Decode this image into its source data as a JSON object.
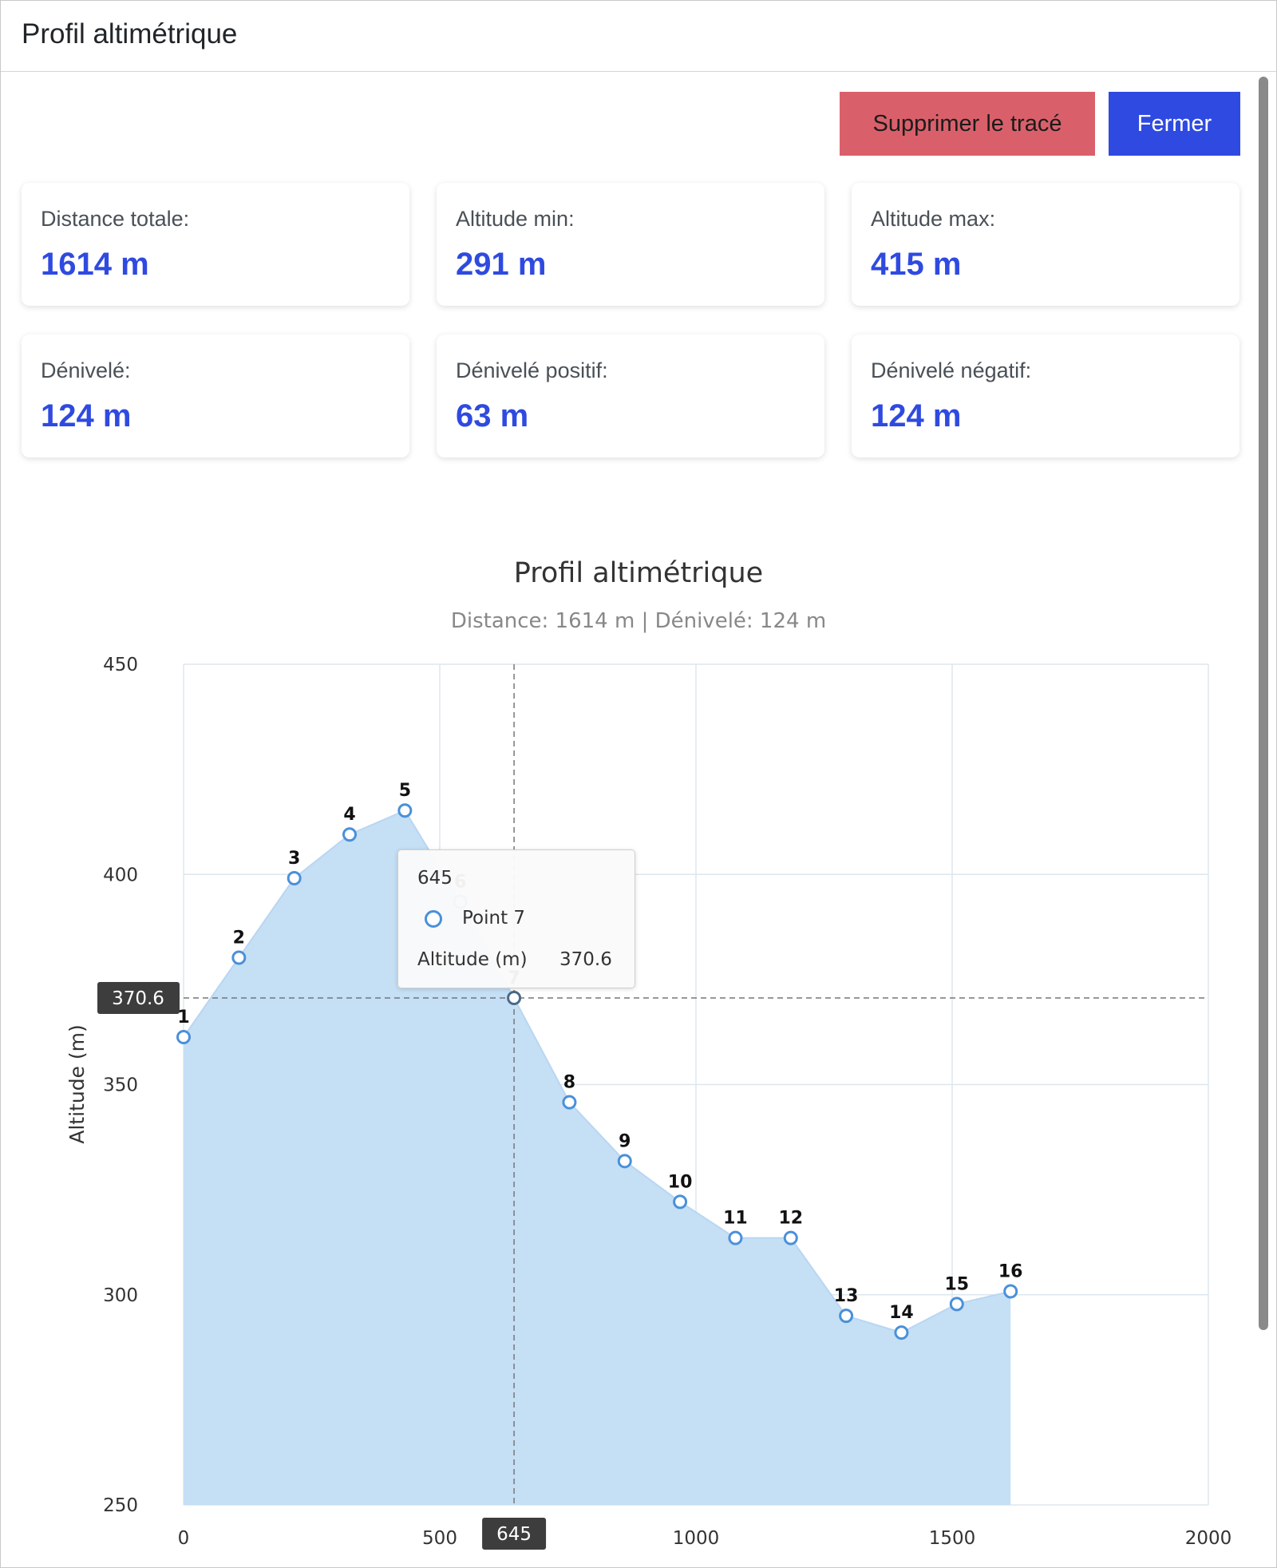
{
  "header": {
    "title": "Profil altimétrique"
  },
  "toolbar": {
    "delete_label": "Supprimer le tracé",
    "close_label": "Fermer"
  },
  "stats": [
    {
      "label": "Distance totale:",
      "value": "1614 m"
    },
    {
      "label": "Altitude min:",
      "value": "291 m"
    },
    {
      "label": "Altitude max:",
      "value": "415 m"
    },
    {
      "label": "Dénivelé:",
      "value": "124 m"
    },
    {
      "label": "Dénivelé positif:",
      "value": "63 m"
    },
    {
      "label": "Dénivelé négatif:",
      "value": "124 m"
    }
  ],
  "colors": {
    "accent": "#2f4ae0",
    "danger": "#d9606a",
    "area_fill": "#c5dff5",
    "series": "#4a90d9"
  },
  "chart_data": {
    "type": "area",
    "title": "Profil altimétrique",
    "subtitle": "Distance: 1614 m | Dénivelé: 124 m",
    "xlabel": "",
    "ylabel": "Altitude (m)",
    "xlim": [
      0,
      2000
    ],
    "ylim": [
      250,
      450
    ],
    "xticks": [
      0,
      500,
      1000,
      1500,
      2000
    ],
    "yticks": [
      250,
      300,
      350,
      400,
      450
    ],
    "grid": true,
    "series": [
      {
        "name": "Point",
        "x": [
          0,
          108,
          216,
          324,
          432,
          540,
          645,
          753,
          861,
          969,
          1077,
          1185,
          1293,
          1401,
          1509,
          1614
        ],
        "y": [
          361.3,
          380.2,
          399.1,
          409.5,
          415.2,
          393.5,
          370.6,
          345.8,
          331.8,
          322.1,
          313.5,
          313.5,
          295.0,
          291.0,
          297.8,
          300.8
        ],
        "labels": [
          "1",
          "2",
          "3",
          "4",
          "5",
          "6",
          "7",
          "8",
          "9",
          "10",
          "11",
          "12",
          "13",
          "14",
          "15",
          "16"
        ]
      }
    ],
    "crosshair": {
      "x": 645,
      "y": 370.6,
      "x_label": "645",
      "y_label": "370.6"
    },
    "tooltip": {
      "title": "645",
      "series_name": "Point 7",
      "value_label": "Altitude (m)",
      "value": "370.6"
    }
  }
}
